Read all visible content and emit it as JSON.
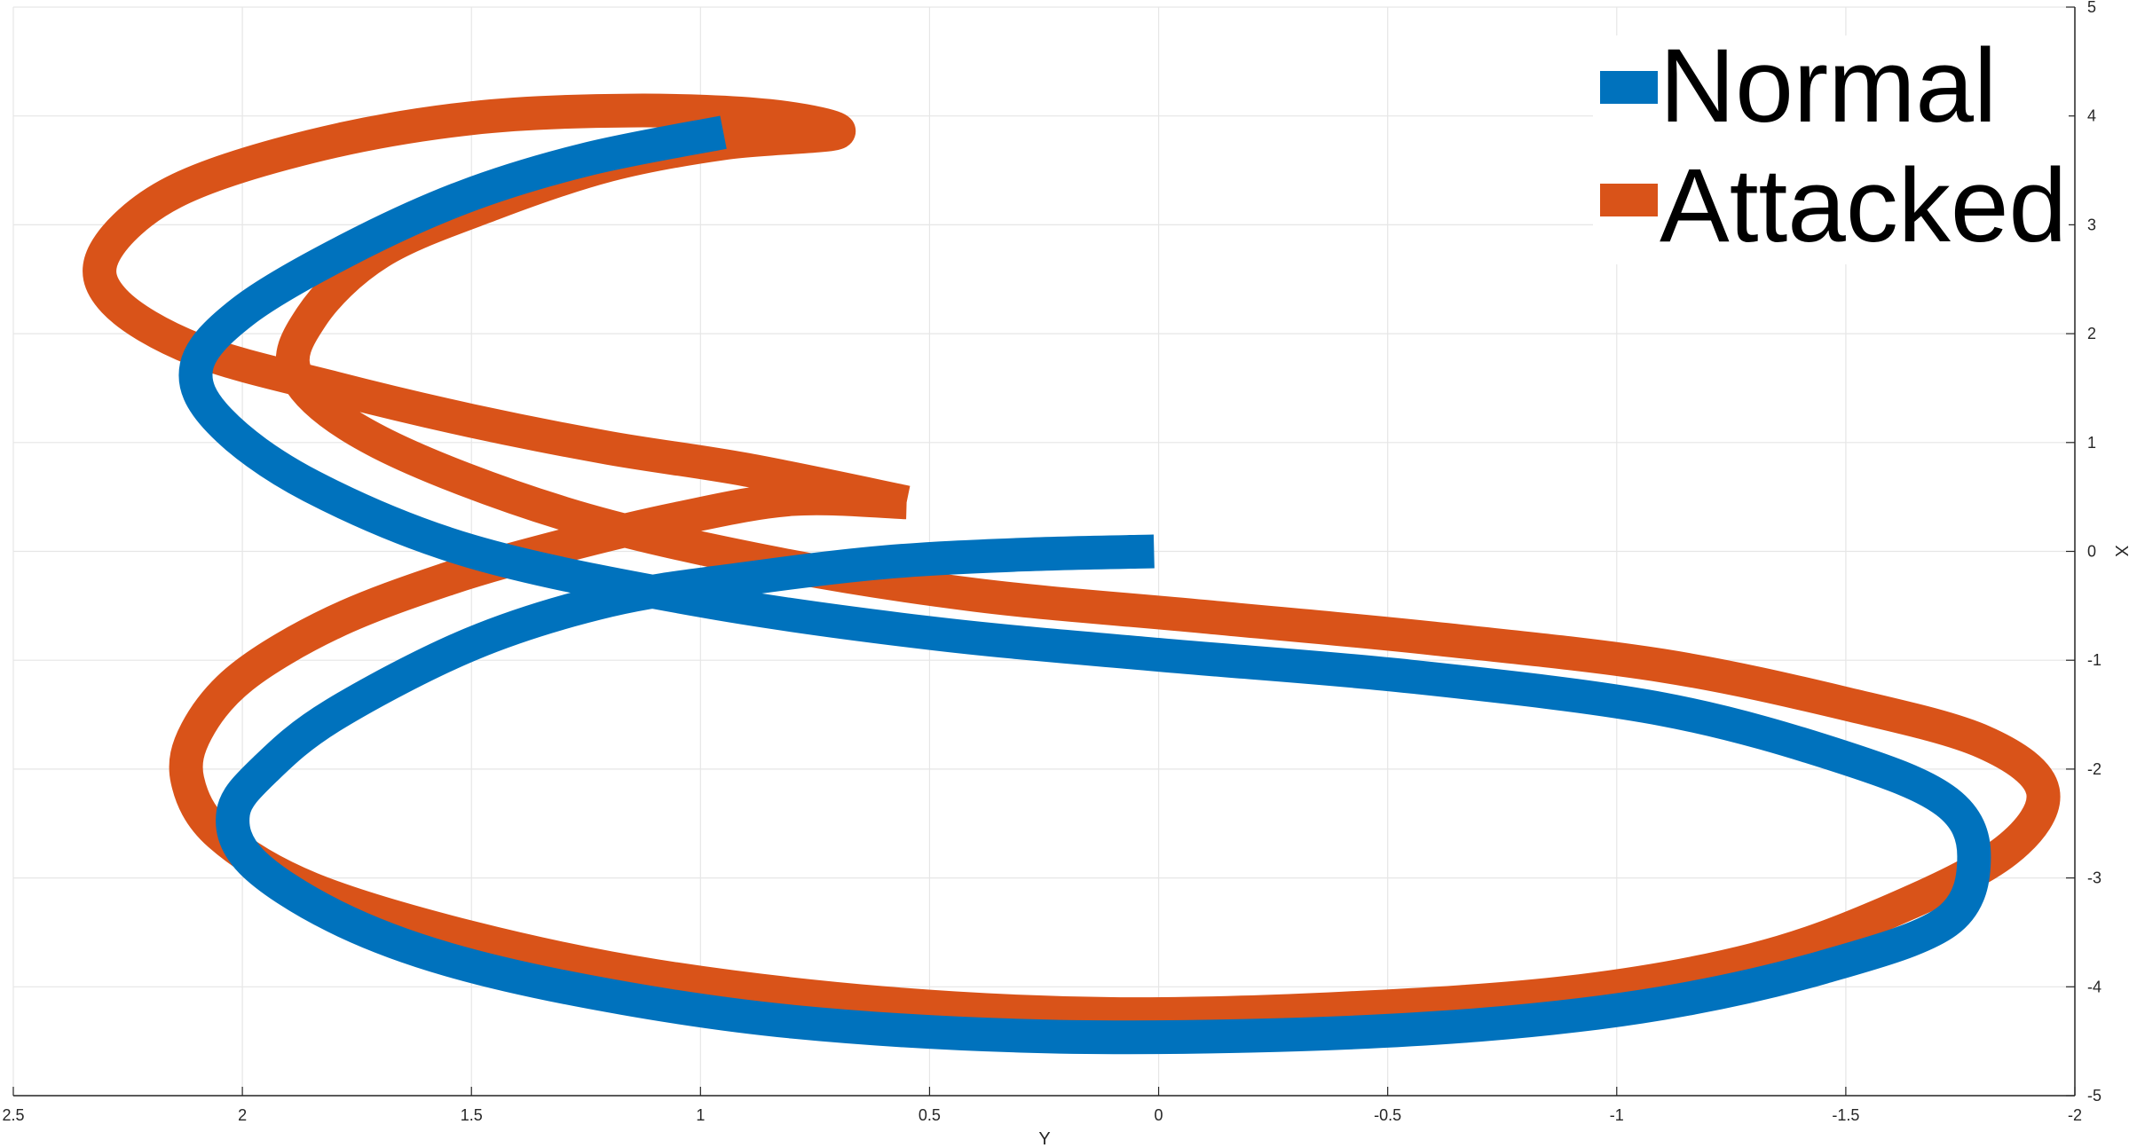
{
  "chart_data": {
    "type": "line",
    "title": "",
    "xlabel": "Y",
    "ylabel": "X",
    "x_axis_reversed": true,
    "xlim": [
      2.5,
      -2
    ],
    "ylim": [
      -5,
      5
    ],
    "xticks": [
      2.5,
      2,
      1.5,
      1,
      0.5,
      0,
      -0.5,
      -1,
      -1.5,
      -2
    ],
    "xtick_labels": [
      "2.5",
      "2",
      "1.5",
      "1",
      "0.5",
      "0",
      "-0.5",
      "-1",
      "-1.5",
      "-2"
    ],
    "yticks": [
      5,
      4,
      3,
      2,
      1,
      0,
      -1,
      -2,
      -3,
      -4,
      -5
    ],
    "ytick_labels": [
      "5",
      "4",
      "3",
      "2",
      "1",
      "0",
      "-1",
      "-2",
      "-3",
      "-4",
      "-5"
    ],
    "y_axis_location": "right",
    "grid": true,
    "legend_location": "top-right",
    "series": [
      {
        "name": "Normal",
        "color": "#0072BD",
        "x": [
          0.01,
          0.3,
          0.6,
          0.9,
          1.2,
          1.5,
          1.8,
          1.95,
          2.02,
          1.98,
          1.8,
          1.55,
          1.2,
          0.8,
          0.3,
          -0.2,
          -0.7,
          -1.1,
          -1.45,
          -1.72,
          -1.78,
          -1.72,
          -1.5,
          -1.1,
          -0.55,
          0.0,
          0.5,
          1.0,
          1.5,
          1.85,
          2.05,
          2.1,
          2.0,
          1.78,
          1.52,
          1.25,
          0.95
        ],
        "y": [
          0.0,
          -0.03,
          -0.1,
          -0.25,
          -0.45,
          -0.85,
          -1.5,
          -2.0,
          -2.4,
          -2.85,
          -3.35,
          -3.75,
          -4.08,
          -4.32,
          -4.45,
          -4.45,
          -4.35,
          -4.15,
          -3.82,
          -3.4,
          -2.8,
          -2.3,
          -1.9,
          -1.45,
          -1.15,
          -0.95,
          -0.75,
          -0.45,
          0.0,
          0.6,
          1.2,
          1.7,
          2.2,
          2.75,
          3.25,
          3.6,
          3.85
        ]
      },
      {
        "name": "Attacked",
        "color": "#D95319",
        "x": [
          0.55,
          0.8,
          1.05,
          1.3,
          1.55,
          1.8,
          2.0,
          2.1,
          2.12,
          2.05,
          1.85,
          1.5,
          1.1,
          0.6,
          0.1,
          -0.4,
          -0.9,
          -1.3,
          -1.6,
          -1.85,
          -1.93,
          -1.8,
          -1.5,
          -1.1,
          -0.6,
          -0.1,
          0.4,
          0.85,
          1.3,
          1.7,
          1.88,
          1.85,
          1.7,
          1.45,
          1.2,
          0.95,
          0.7,
          0.85,
          1.15,
          1.5,
          1.85,
          2.15,
          2.3,
          2.28,
          2.1,
          1.8,
          1.5,
          1.2,
          0.9,
          0.55
        ],
        "y": [
          0.45,
          0.48,
          0.3,
          0.05,
          -0.25,
          -0.65,
          -1.15,
          -1.65,
          -2.1,
          -2.6,
          -3.1,
          -3.55,
          -3.9,
          -4.15,
          -4.25,
          -4.2,
          -4.05,
          -3.75,
          -3.3,
          -2.75,
          -2.2,
          -1.75,
          -1.4,
          -1.05,
          -0.8,
          -0.6,
          -0.4,
          -0.1,
          0.35,
          1.0,
          1.6,
          2.15,
          2.75,
          3.2,
          3.55,
          3.75,
          3.85,
          4.0,
          4.05,
          3.98,
          3.72,
          3.3,
          2.75,
          2.3,
          1.85,
          1.5,
          1.2,
          0.95,
          0.75,
          0.45
        ]
      }
    ]
  },
  "legend": {
    "items": [
      {
        "label": "Normal",
        "color": "#0072BD"
      },
      {
        "label": "Attacked",
        "color": "#D95319"
      }
    ]
  }
}
